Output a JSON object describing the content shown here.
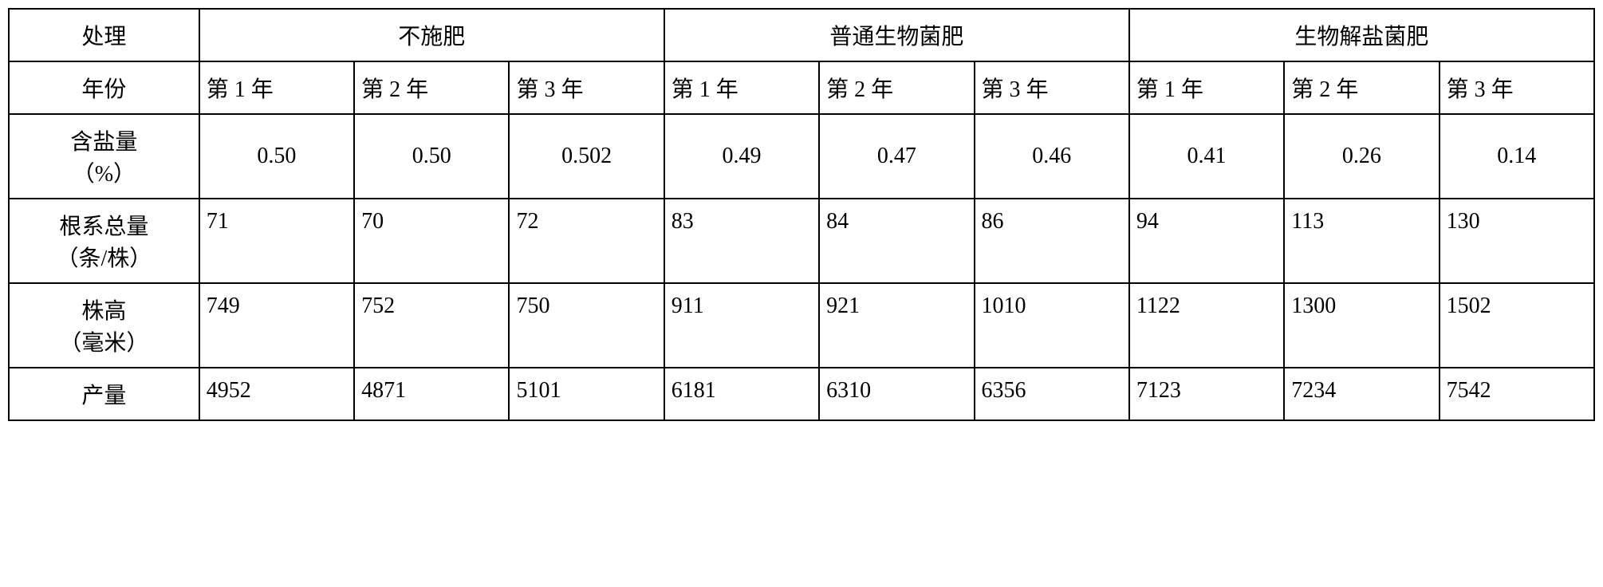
{
  "table": {
    "type": "table",
    "background_color": "#ffffff",
    "border_color": "#000000",
    "font_family": "SimSun",
    "font_size": 28,
    "header_row": {
      "label": "处理",
      "groups": [
        "不施肥",
        "普通生物菌肥",
        "生物解盐菌肥"
      ]
    },
    "year_row": {
      "label": "年份",
      "years": [
        "第 1 年",
        "第 2 年",
        "第 3 年",
        "第 1 年",
        "第 2 年",
        "第 3 年",
        "第 1 年",
        "第 2 年",
        "第 3 年"
      ]
    },
    "data_rows": [
      {
        "label_line1": "含盐量",
        "label_line2": "（%）",
        "values": [
          "0.50",
          "0.50",
          "0.502",
          "0.49",
          "0.47",
          "0.46",
          "0.41",
          "0.26",
          "0.14"
        ],
        "align": "center"
      },
      {
        "label_line1": "根系总量",
        "label_line2": "（条/株）",
        "values": [
          "71",
          "70",
          "72",
          "83",
          "84",
          "86",
          "94",
          "113",
          "130"
        ],
        "align": "left"
      },
      {
        "label_line1": "株高",
        "label_line2": "（毫米）",
        "values": [
          "749",
          "752",
          "750",
          "911",
          "921",
          "1010",
          "1122",
          "1300",
          "1502"
        ],
        "align": "left"
      },
      {
        "label_line1": "产量",
        "label_line2": "",
        "values": [
          "4952",
          "4871",
          "5101",
          "6181",
          "6310",
          "6356",
          "7123",
          "7234",
          "7542"
        ],
        "align": "left"
      }
    ]
  }
}
